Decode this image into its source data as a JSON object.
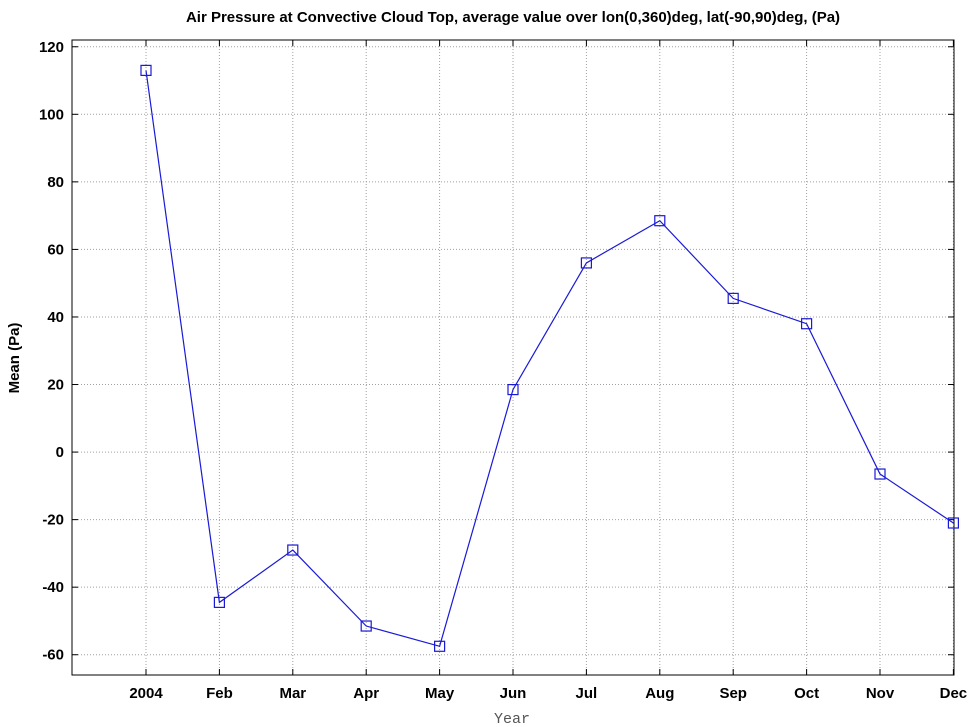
{
  "chart_data": {
    "type": "line",
    "title": "Air Pressure at Convective Cloud Top, average value over lon(0,360)deg, lat(-90,90)deg, (Pa)",
    "xlabel": "Year",
    "ylabel": "Mean (Pa)",
    "categories": [
      "2004",
      "Feb",
      "Mar",
      "Apr",
      "May",
      "Jun",
      "Jul",
      "Aug",
      "Sep",
      "Oct",
      "Nov",
      "Dec"
    ],
    "series": [
      {
        "values": [
          113,
          -44.5,
          -29,
          -51.5,
          -57.5,
          18.5,
          56,
          68.5,
          45.5,
          38,
          -6.5,
          -21
        ]
      }
    ],
    "ylim": [
      -66,
      122
    ],
    "yticks": [
      120,
      100,
      80,
      60,
      40,
      20,
      0,
      -20,
      -40,
      -60
    ],
    "grid": true,
    "marker": "square",
    "colors": {
      "series": "#1a1ad6",
      "grid": "#a0a0a0"
    }
  }
}
